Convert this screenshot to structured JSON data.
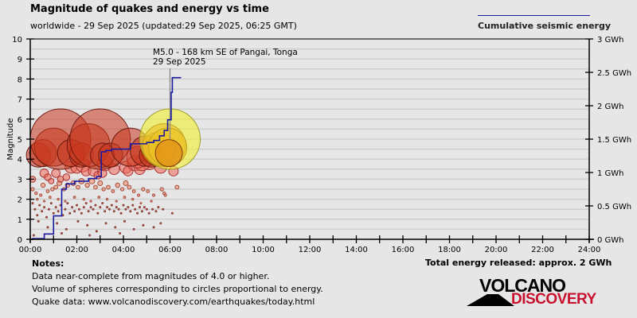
{
  "header": {
    "title": "Magnitude of quakes and energy vs time",
    "subtitle": "worldwide - 29 Sep 2025 (updated:29 Sep 2025, 06:25 GMT)"
  },
  "legend": {
    "label": "Cumulative seismic energy",
    "color": "#1a1aa0"
  },
  "footer": {
    "total_energy": "Total energy released: approx. 2 GWh",
    "notes_title": "Notes:",
    "notes": [
      "Data near-complete from magnitudes of 4.0 or higher.",
      "Volume of spheres corresponding to circles proportional to energy.",
      "Quake data: www.volcanodiscovery.com/earthquakes/today.html"
    ]
  },
  "logo": {
    "top": "VOLCANO",
    "bottom": "DISCOVERY"
  },
  "chart_data": {
    "type": "scatter",
    "title": "Magnitude of quakes and energy vs time",
    "xlabel": "",
    "ylabel": "Magnitude",
    "y2label": "Cumulative seismic energy",
    "xlim": [
      0,
      24
    ],
    "ylim": [
      0,
      10
    ],
    "y2lim": [
      0,
      3
    ],
    "grid": true,
    "legend_position": "top-right",
    "x_ticks": [
      "00:00",
      "02:00",
      "04:00",
      "06:00",
      "08:00",
      "10:00",
      "12:00",
      "14:00",
      "16:00",
      "18:00",
      "20:00",
      "22:00",
      "24:00"
    ],
    "y_ticks": [
      "0",
      "1",
      "2",
      "3",
      "4",
      "5",
      "6",
      "7",
      "8",
      "9",
      "10"
    ],
    "y2_ticks": [
      "0 GWh",
      "0.5 GWh",
      "1 GWh",
      "1.5 GWh",
      "2 GWh",
      "2.5 GWh",
      "3 GWh"
    ],
    "annotation": {
      "line1": "M5.0 - 168 km SE of Pangai, Tonga",
      "line2": "29 Sep 2025",
      "x": 6.0,
      "y": 8.1
    },
    "large_quakes": [
      {
        "t": 0.35,
        "mag": 4.2
      },
      {
        "t": 0.55,
        "mag": 4.3
      },
      {
        "t": 1.0,
        "mag": 4.6
      },
      {
        "t": 1.3,
        "mag": 5.0
      },
      {
        "t": 1.75,
        "mag": 4.3
      },
      {
        "t": 2.2,
        "mag": 4.2
      },
      {
        "t": 2.5,
        "mag": 4.7
      },
      {
        "t": 3.0,
        "mag": 5.0
      },
      {
        "t": 3.1,
        "mag": 4.2
      },
      {
        "t": 3.45,
        "mag": 4.2
      },
      {
        "t": 4.3,
        "mag": 4.6
      },
      {
        "t": 4.95,
        "mag": 4.4
      },
      {
        "t": 5.2,
        "mag": 4.2
      },
      {
        "t": 5.5,
        "mag": 4.5
      },
      {
        "t": 5.75,
        "mag": 4.7
      },
      {
        "t": 5.9,
        "mag": 4.6
      },
      {
        "t": 6.0,
        "mag": 5.0
      },
      {
        "t": 5.95,
        "mag": 4.3
      }
    ],
    "medium_quakes": [
      {
        "t": 0.1,
        "mag": 3.0
      },
      {
        "t": 0.6,
        "mag": 3.3
      },
      {
        "t": 0.75,
        "mag": 3.1
      },
      {
        "t": 0.9,
        "mag": 2.9
      },
      {
        "t": 1.1,
        "mag": 3.3
      },
      {
        "t": 1.3,
        "mag": 3.0
      },
      {
        "t": 1.55,
        "mag": 3.1
      },
      {
        "t": 1.75,
        "mag": 3.6
      },
      {
        "t": 2.0,
        "mag": 3.6
      },
      {
        "t": 2.25,
        "mag": 3.7
      },
      {
        "t": 2.4,
        "mag": 3.4
      },
      {
        "t": 2.7,
        "mag": 3.4
      },
      {
        "t": 2.9,
        "mag": 3.2
      },
      {
        "t": 3.1,
        "mag": 3.3
      },
      {
        "t": 3.2,
        "mag": 3.8
      },
      {
        "t": 3.6,
        "mag": 3.5
      },
      {
        "t": 4.1,
        "mag": 3.6
      },
      {
        "t": 4.2,
        "mag": 3.4
      },
      {
        "t": 4.5,
        "mag": 3.8
      },
      {
        "t": 4.7,
        "mag": 3.5
      },
      {
        "t": 5.1,
        "mag": 3.9
      },
      {
        "t": 5.6,
        "mag": 3.6
      },
      {
        "t": 6.15,
        "mag": 3.4
      },
      {
        "t": 4.8,
        "mag": 3.8
      },
      {
        "t": 4.6,
        "mag": 4.1
      }
    ],
    "small_quakes": [
      {
        "t": 0.1,
        "mag": 2.5
      },
      {
        "t": 0.25,
        "mag": 2.3
      },
      {
        "t": 0.45,
        "mag": 2.2
      },
      {
        "t": 0.55,
        "mag": 2.7
      },
      {
        "t": 0.75,
        "mag": 2.4
      },
      {
        "t": 0.95,
        "mag": 2.5
      },
      {
        "t": 1.1,
        "mag": 2.6
      },
      {
        "t": 1.25,
        "mag": 2.8
      },
      {
        "t": 1.45,
        "mag": 2.5
      },
      {
        "t": 1.6,
        "mag": 2.7
      },
      {
        "t": 1.85,
        "mag": 2.8
      },
      {
        "t": 2.05,
        "mag": 2.6
      },
      {
        "t": 2.2,
        "mag": 2.9
      },
      {
        "t": 2.45,
        "mag": 2.7
      },
      {
        "t": 2.65,
        "mag": 2.9
      },
      {
        "t": 2.8,
        "mag": 2.6
      },
      {
        "t": 3.0,
        "mag": 2.8
      },
      {
        "t": 3.15,
        "mag": 2.5
      },
      {
        "t": 3.35,
        "mag": 2.6
      },
      {
        "t": 3.55,
        "mag": 2.4
      },
      {
        "t": 3.75,
        "mag": 2.7
      },
      {
        "t": 3.95,
        "mag": 2.5
      },
      {
        "t": 4.1,
        "mag": 2.8
      },
      {
        "t": 4.25,
        "mag": 2.6
      },
      {
        "t": 4.45,
        "mag": 2.4
      },
      {
        "t": 4.65,
        "mag": 2.2
      },
      {
        "t": 4.85,
        "mag": 2.5
      },
      {
        "t": 5.05,
        "mag": 2.4
      },
      {
        "t": 5.3,
        "mag": 2.2
      },
      {
        "t": 5.65,
        "mag": 2.5
      },
      {
        "t": 5.75,
        "mag": 2.3
      },
      {
        "t": 5.8,
        "mag": 2.2
      },
      {
        "t": 6.3,
        "mag": 2.6
      },
      {
        "t": 0.3,
        "mag": 2.0
      },
      {
        "t": 0.6,
        "mag": 1.9
      },
      {
        "t": 0.85,
        "mag": 2.1
      },
      {
        "t": 1.2,
        "mag": 2.0
      },
      {
        "t": 1.5,
        "mag": 1.9
      },
      {
        "t": 1.9,
        "mag": 2.1
      },
      {
        "t": 2.3,
        "mag": 2.0
      },
      {
        "t": 2.6,
        "mag": 1.9
      },
      {
        "t": 2.95,
        "mag": 2.1
      },
      {
        "t": 3.3,
        "mag": 2.0
      },
      {
        "t": 3.7,
        "mag": 1.9
      },
      {
        "t": 4.05,
        "mag": 2.1
      },
      {
        "t": 4.4,
        "mag": 2.0
      },
      {
        "t": 4.75,
        "mag": 1.8
      },
      {
        "t": 5.2,
        "mag": 1.9
      }
    ],
    "tiny_quakes": [
      {
        "t": 0.1,
        "mag": 1.8
      },
      {
        "t": 0.2,
        "mag": 1.5
      },
      {
        "t": 0.3,
        "mag": 1.2
      },
      {
        "t": 0.4,
        "mag": 1.7
      },
      {
        "t": 0.5,
        "mag": 1.4
      },
      {
        "t": 0.6,
        "mag": 1.6
      },
      {
        "t": 0.7,
        "mag": 1.1
      },
      {
        "t": 0.8,
        "mag": 1.5
      },
      {
        "t": 0.9,
        "mag": 1.8
      },
      {
        "t": 1.0,
        "mag": 1.3
      },
      {
        "t": 1.1,
        "mag": 1.6
      },
      {
        "t": 1.2,
        "mag": 1.4
      },
      {
        "t": 1.3,
        "mag": 1.7
      },
      {
        "t": 1.4,
        "mag": 1.2
      },
      {
        "t": 1.5,
        "mag": 1.5
      },
      {
        "t": 1.6,
        "mag": 1.8
      },
      {
        "t": 1.7,
        "mag": 1.3
      },
      {
        "t": 1.8,
        "mag": 1.6
      },
      {
        "t": 1.9,
        "mag": 1.4
      },
      {
        "t": 2.0,
        "mag": 1.7
      },
      {
        "t": 2.1,
        "mag": 1.5
      },
      {
        "t": 2.2,
        "mag": 1.3
      },
      {
        "t": 2.3,
        "mag": 1.6
      },
      {
        "t": 2.4,
        "mag": 1.8
      },
      {
        "t": 2.5,
        "mag": 1.4
      },
      {
        "t": 2.6,
        "mag": 1.6
      },
      {
        "t": 2.7,
        "mag": 1.5
      },
      {
        "t": 2.8,
        "mag": 1.7
      },
      {
        "t": 2.9,
        "mag": 1.3
      },
      {
        "t": 3.0,
        "mag": 1.6
      },
      {
        "t": 3.1,
        "mag": 1.8
      },
      {
        "t": 3.2,
        "mag": 1.4
      },
      {
        "t": 3.3,
        "mag": 1.6
      },
      {
        "t": 3.4,
        "mag": 1.5
      },
      {
        "t": 3.5,
        "mag": 1.7
      },
      {
        "t": 3.6,
        "mag": 1.4
      },
      {
        "t": 3.7,
        "mag": 1.6
      },
      {
        "t": 3.8,
        "mag": 1.5
      },
      {
        "t": 3.9,
        "mag": 1.3
      },
      {
        "t": 4.0,
        "mag": 1.7
      },
      {
        "t": 4.1,
        "mag": 1.5
      },
      {
        "t": 4.2,
        "mag": 1.6
      },
      {
        "t": 4.3,
        "mag": 1.4
      },
      {
        "t": 4.4,
        "mag": 1.7
      },
      {
        "t": 4.5,
        "mag": 1.5
      },
      {
        "t": 4.6,
        "mag": 1.3
      },
      {
        "t": 4.7,
        "mag": 1.6
      },
      {
        "t": 4.8,
        "mag": 1.4
      },
      {
        "t": 4.9,
        "mag": 1.6
      },
      {
        "t": 5.0,
        "mag": 1.5
      },
      {
        "t": 5.1,
        "mag": 1.3
      },
      {
        "t": 5.25,
        "mag": 1.5
      },
      {
        "t": 5.4,
        "mag": 1.4
      },
      {
        "t": 5.5,
        "mag": 1.6
      },
      {
        "t": 5.7,
        "mag": 1.5
      },
      {
        "t": 6.1,
        "mag": 1.3
      },
      {
        "t": 0.35,
        "mag": 0.9
      },
      {
        "t": 0.75,
        "mag": 0.6
      },
      {
        "t": 1.15,
        "mag": 0.8
      },
      {
        "t": 1.55,
        "mag": 0.5
      },
      {
        "t": 2.05,
        "mag": 0.9
      },
      {
        "t": 2.45,
        "mag": 0.7
      },
      {
        "t": 2.85,
        "mag": 0.4
      },
      {
        "t": 3.25,
        "mag": 0.8
      },
      {
        "t": 3.65,
        "mag": 0.6
      },
      {
        "t": 4.05,
        "mag": 0.9
      },
      {
        "t": 4.45,
        "mag": 0.5
      },
      {
        "t": 4.85,
        "mag": 0.7
      },
      {
        "t": 5.3,
        "mag": 0.6
      },
      {
        "t": 5.6,
        "mag": 0.8
      },
      {
        "t": 1.35,
        "mag": 0.3
      },
      {
        "t": 2.55,
        "mag": 0.2
      },
      {
        "t": 3.85,
        "mag": 0.3
      },
      {
        "t": 0.15,
        "mag": 0.2
      }
    ],
    "cumulative_energy_gwh": [
      {
        "t": 0.0,
        "e": 0.0
      },
      {
        "t": 0.1,
        "e": 0.01
      },
      {
        "t": 0.6,
        "e": 0.08
      },
      {
        "t": 1.0,
        "e": 0.35
      },
      {
        "t": 1.35,
        "e": 0.75
      },
      {
        "t": 1.55,
        "e": 0.83
      },
      {
        "t": 1.9,
        "e": 0.87
      },
      {
        "t": 2.5,
        "e": 0.91
      },
      {
        "t": 2.85,
        "e": 0.94
      },
      {
        "t": 3.05,
        "e": 1.31
      },
      {
        "t": 3.25,
        "e": 1.33
      },
      {
        "t": 3.5,
        "e": 1.35
      },
      {
        "t": 4.3,
        "e": 1.43
      },
      {
        "t": 5.0,
        "e": 1.45
      },
      {
        "t": 5.3,
        "e": 1.48
      },
      {
        "t": 5.55,
        "e": 1.55
      },
      {
        "t": 5.75,
        "e": 1.63
      },
      {
        "t": 5.9,
        "e": 1.79
      },
      {
        "t": 6.05,
        "e": 2.2
      },
      {
        "t": 6.1,
        "e": 2.42
      },
      {
        "t": 6.45,
        "e": 2.43
      }
    ]
  }
}
